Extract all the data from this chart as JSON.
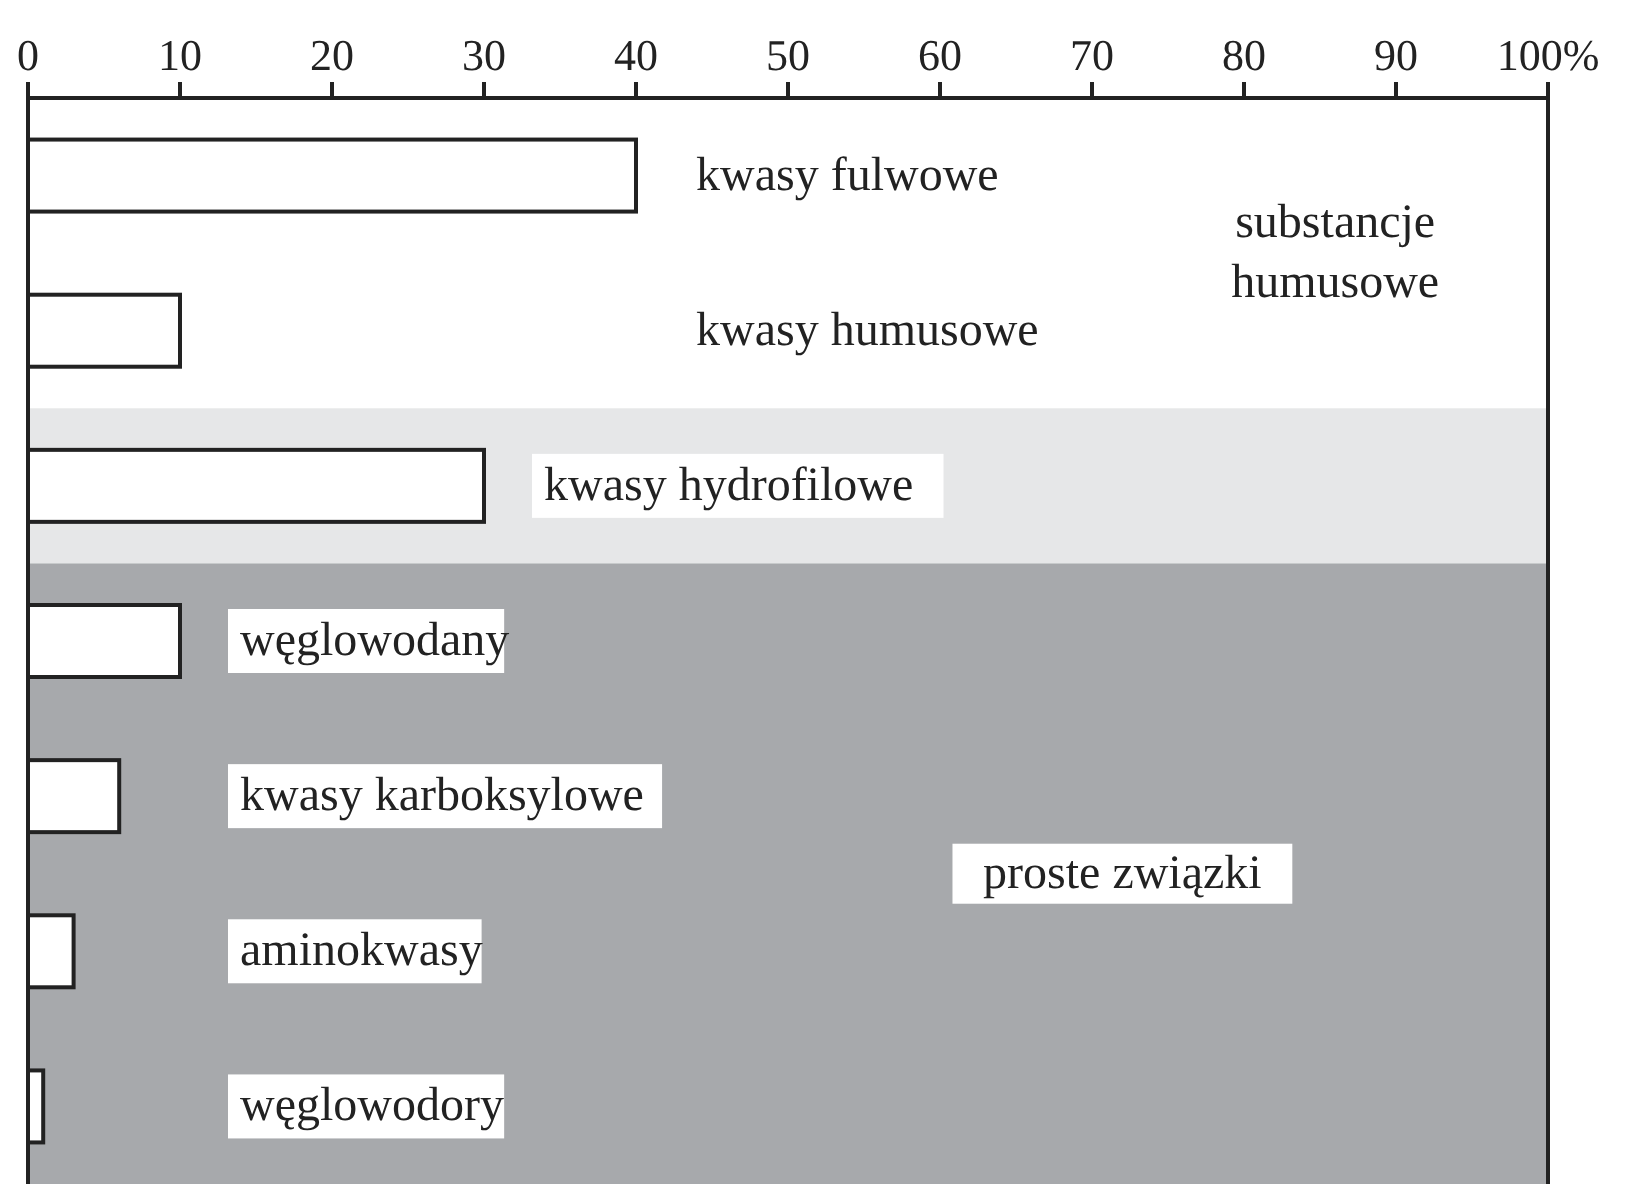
{
  "chart_data": {
    "type": "bar",
    "orientation": "horizontal",
    "categories": [
      "kwasy fulwowe",
      "kwasy humusowe",
      "kwasy hydrofilowe",
      "węglowodany",
      "kwasy karboksylowe",
      "aminokwasy",
      "węglowodory"
    ],
    "values": [
      40,
      10,
      30,
      10,
      6,
      3,
      1
    ],
    "color": "#ffffff",
    "xlim": [
      0,
      100
    ],
    "xticks": [
      0,
      10,
      20,
      30,
      40,
      50,
      60,
      70,
      80,
      90,
      {
        "value": 100,
        "label": "100%"
      }
    ],
    "grid": false,
    "annotations": [
      "substancje humusowe"
    ],
    "bands": [
      {
        "axis": "y",
        "from": "kwasy hydrofilowe",
        "to": "kwasy hydrofilowe",
        "color": "#e6e7e8"
      },
      {
        "axis": "y",
        "from": "węglowodany",
        "to": "węglowodory",
        "label": "proste związki",
        "color": "#a7a9ac"
      }
    ]
  }
}
